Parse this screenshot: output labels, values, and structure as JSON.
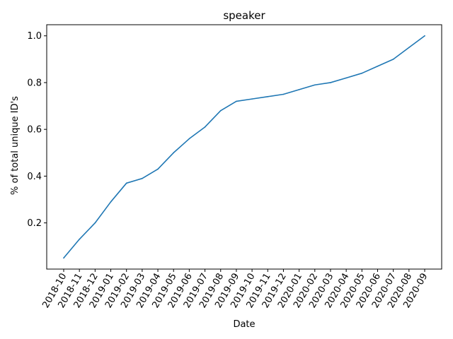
{
  "chart_data": {
    "type": "line",
    "title": "speaker",
    "xlabel": "Date",
    "ylabel": "% of total unique ID's",
    "categories": [
      "2018-10",
      "2018-11",
      "2018-12",
      "2019-01",
      "2019-02",
      "2019-03",
      "2019-04",
      "2019-05",
      "2019-06",
      "2019-07",
      "2019-08",
      "2019-09",
      "2019-10",
      "2019-11",
      "2019-12",
      "2020-01",
      "2020-02",
      "2020-03",
      "2020-04",
      "2020-05",
      "2020-06",
      "2020-07",
      "2020-08",
      "2020-09"
    ],
    "series": [
      {
        "color": "#1f77b4",
        "values": [
          0.05,
          0.13,
          0.2,
          0.29,
          0.37,
          0.39,
          0.43,
          0.5,
          0.56,
          0.61,
          0.68,
          0.72,
          0.73,
          0.74,
          0.75,
          0.77,
          0.79,
          0.8,
          0.82,
          0.84,
          0.87,
          0.9,
          0.95,
          1.0
        ]
      }
    ],
    "yticks": [
      0.2,
      0.4,
      0.6,
      0.8,
      1.0
    ],
    "ytick_labels": [
      "0.2",
      "0.4",
      "0.6",
      "0.8",
      "1.0"
    ],
    "ylim": [
      0.0025,
      1.0475
    ],
    "grid": false,
    "legend": "none"
  }
}
